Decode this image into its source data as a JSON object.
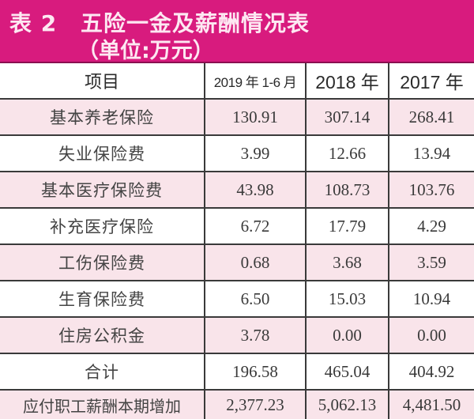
{
  "title": {
    "table_number": "表 2",
    "name": "五险一金及薪酬情况表",
    "unit": "（单位:万元）"
  },
  "colors": {
    "title_bar": "#d81b7e",
    "title_text": "#fde8f2",
    "row_pink": "#f9e4ea",
    "row_white": "#ffffff",
    "border": "#3a3a3a"
  },
  "table": {
    "headers": [
      "项目",
      "2019 年 1-6 月",
      "2018 年",
      "2017 年"
    ],
    "rows": [
      {
        "item": "基本养老保险",
        "values": [
          "130.91",
          "307.14",
          "268.41"
        ]
      },
      {
        "item": "失业保险费",
        "values": [
          "3.99",
          "12.66",
          "13.94"
        ]
      },
      {
        "item": "基本医疗保险费",
        "values": [
          "43.98",
          "108.73",
          "103.76"
        ]
      },
      {
        "item": "补充医疗保险",
        "values": [
          "6.72",
          "17.79",
          "4.29"
        ]
      },
      {
        "item": "工伤保险费",
        "values": [
          "0.68",
          "3.68",
          "3.59"
        ]
      },
      {
        "item": "生育保险费",
        "values": [
          "6.50",
          "15.03",
          "10.94"
        ]
      },
      {
        "item": "住房公积金",
        "values": [
          "3.78",
          "0.00",
          "0.00"
        ]
      },
      {
        "item": "合计",
        "values": [
          "196.58",
          "465.04",
          "404.92"
        ]
      },
      {
        "item": "应付职工薪酬本期增加",
        "values": [
          "2,377.23",
          "5,062.13",
          "4,481.50"
        ]
      }
    ]
  }
}
